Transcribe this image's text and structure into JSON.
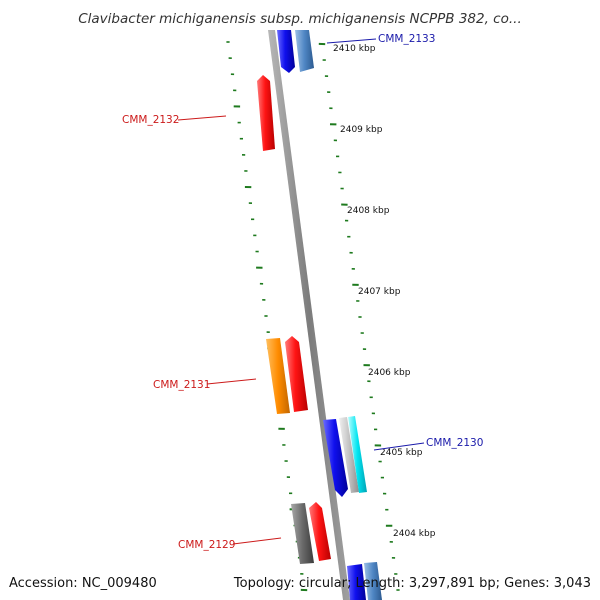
{
  "title": "Clavibacter michiganensis subsp. michiganensis NCPPB 382, co...",
  "footer": {
    "accession": "Accession: NC_009480",
    "summary": "Topology: circular; Length: 3,297,891 bp; Genes: 3,043"
  },
  "colors": {
    "backbone": "#8a8a8a",
    "tick": "#1e7a1e",
    "forward_label": "#1a1aaa",
    "reverse_label": "#cc1a1a"
  },
  "kbp_labels": [
    "2410 kbp",
    "2409 kbp",
    "2408 kbp",
    "2407 kbp",
    "2406 kbp",
    "2405 kbp",
    "2404 kbp"
  ],
  "gene_labels": {
    "cmm_2133": "CMM_2133",
    "cmm_2132": "CMM_2132",
    "cmm_2131": "CMM_2131",
    "cmm_2130": "CMM_2130",
    "cmm_2129": "CMM_2129"
  }
}
